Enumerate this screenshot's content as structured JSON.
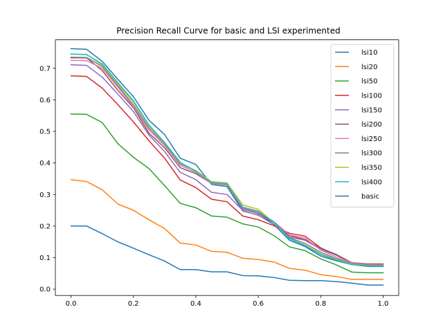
{
  "chart_data": {
    "type": "line",
    "title": "Precision Recall Curve for basic and LSI experimented",
    "xlabel": "",
    "ylabel": "",
    "xlim": [
      -0.05,
      1.05
    ],
    "ylim": [
      -0.02,
      0.79
    ],
    "xticks": [
      0.0,
      0.2,
      0.4,
      0.6,
      0.8,
      1.0
    ],
    "xtick_labels": [
      "0.0",
      "0.2",
      "0.4",
      "0.6",
      "0.8",
      "1.0"
    ],
    "yticks": [
      0.0,
      0.1,
      0.2,
      0.3,
      0.4,
      0.5,
      0.6,
      0.7
    ],
    "ytick_labels": [
      "0.0",
      "0.1",
      "0.2",
      "0.3",
      "0.4",
      "0.5",
      "0.6",
      "0.7"
    ],
    "grid": false,
    "legend_position": "top-right",
    "x": [
      0.0,
      0.05,
      0.1,
      0.15,
      0.2,
      0.25,
      0.3,
      0.35,
      0.4,
      0.45,
      0.5,
      0.55,
      0.6,
      0.65,
      0.7,
      0.75,
      0.8,
      0.85,
      0.9,
      0.95,
      1.0
    ],
    "series": [
      {
        "name": "lsi10",
        "color": "#1f77b4",
        "values": [
          0.762,
          0.76,
          0.722,
          0.665,
          0.61,
          0.535,
          0.49,
          0.415,
          0.395,
          0.332,
          0.325,
          0.248,
          0.235,
          0.205,
          0.155,
          0.135,
          0.105,
          0.09,
          0.078,
          0.072,
          0.072
        ]
      },
      {
        "name": "lsi20",
        "color": "#ff7f0e",
        "values": [
          0.347,
          0.341,
          0.315,
          0.27,
          0.25,
          0.22,
          0.192,
          0.146,
          0.14,
          0.12,
          0.117,
          0.098,
          0.094,
          0.086,
          0.066,
          0.06,
          0.046,
          0.04,
          0.031,
          0.031,
          0.031
        ]
      },
      {
        "name": "lsi50",
        "color": "#2ca02c",
        "values": [
          0.555,
          0.554,
          0.528,
          0.461,
          0.418,
          0.382,
          0.328,
          0.272,
          0.258,
          0.232,
          0.228,
          0.207,
          0.197,
          0.17,
          0.134,
          0.122,
          0.096,
          0.077,
          0.054,
          0.052,
          0.052
        ]
      },
      {
        "name": "lsi100",
        "color": "#d62728",
        "values": [
          0.676,
          0.674,
          0.637,
          0.585,
          0.53,
          0.47,
          0.415,
          0.346,
          0.322,
          0.285,
          0.277,
          0.232,
          0.22,
          0.201,
          0.177,
          0.168,
          0.131,
          0.108,
          0.084,
          0.08,
          0.08
        ]
      },
      {
        "name": "lsi150",
        "color": "#9467bd",
        "values": [
          0.711,
          0.709,
          0.672,
          0.618,
          0.563,
          0.488,
          0.436,
          0.37,
          0.347,
          0.307,
          0.3,
          0.25,
          0.234,
          0.211,
          0.165,
          0.155,
          0.126,
          0.108,
          0.084,
          0.079,
          0.079
        ]
      },
      {
        "name": "lsi200",
        "color": "#8c564b",
        "values": [
          0.733,
          0.733,
          0.693,
          0.63,
          0.575,
          0.494,
          0.448,
          0.385,
          0.366,
          0.335,
          0.33,
          0.255,
          0.24,
          0.212,
          0.17,
          0.157,
          0.13,
          0.11,
          0.084,
          0.08,
          0.08
        ]
      },
      {
        "name": "lsi250",
        "color": "#e377c2",
        "values": [
          0.725,
          0.724,
          0.7,
          0.64,
          0.578,
          0.504,
          0.455,
          0.392,
          0.37,
          0.334,
          0.33,
          0.258,
          0.244,
          0.214,
          0.172,
          0.162,
          0.124,
          0.102,
          0.084,
          0.078,
          0.078
        ]
      },
      {
        "name": "lsi300",
        "color": "#7f7f7f",
        "values": [
          0.735,
          0.734,
          0.706,
          0.645,
          0.584,
          0.51,
          0.46,
          0.397,
          0.375,
          0.336,
          0.334,
          0.26,
          0.247,
          0.213,
          0.163,
          0.145,
          0.117,
          0.097,
          0.082,
          0.076,
          0.076
        ]
      },
      {
        "name": "lsi350",
        "color": "#bcbd22",
        "values": [
          0.745,
          0.744,
          0.71,
          0.65,
          0.593,
          0.516,
          0.463,
          0.4,
          0.376,
          0.341,
          0.337,
          0.267,
          0.253,
          0.211,
          0.16,
          0.14,
          0.112,
          0.094,
          0.08,
          0.074,
          0.074
        ]
      },
      {
        "name": "lsi400",
        "color": "#17becf",
        "values": [
          0.745,
          0.743,
          0.714,
          0.655,
          0.597,
          0.52,
          0.465,
          0.402,
          0.373,
          0.338,
          0.333,
          0.26,
          0.246,
          0.212,
          0.16,
          0.138,
          0.11,
          0.092,
          0.078,
          0.073,
          0.073
        ]
      },
      {
        "name": "basic",
        "color": "#1f77b4",
        "values": [
          0.2,
          0.2,
          0.176,
          0.15,
          0.13,
          0.109,
          0.089,
          0.062,
          0.062,
          0.055,
          0.055,
          0.043,
          0.042,
          0.037,
          0.028,
          0.027,
          0.027,
          0.024,
          0.019,
          0.013,
          0.013
        ]
      }
    ]
  }
}
